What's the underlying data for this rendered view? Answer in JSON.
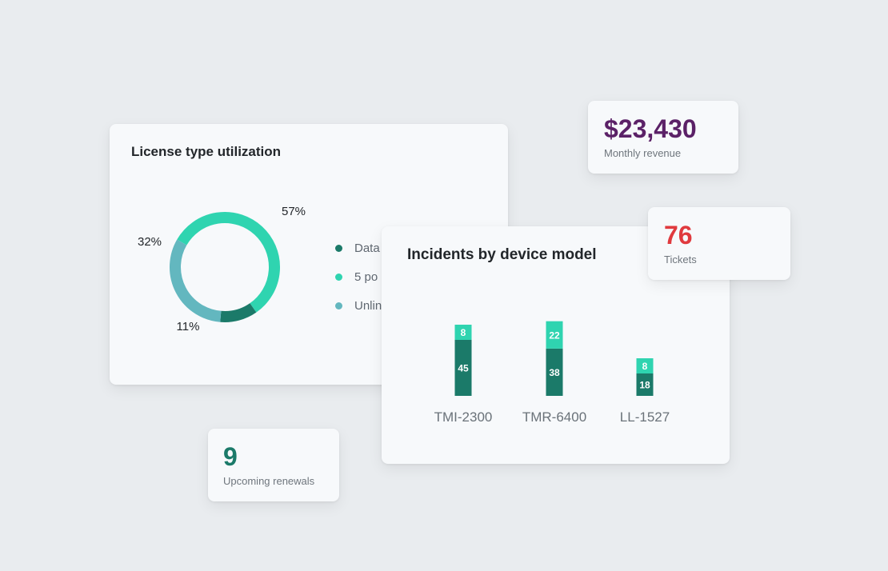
{
  "license_card": {
    "title": "License type utilization",
    "legend": [
      {
        "label": "Data",
        "color": "#1b7a69"
      },
      {
        "label": "5 po",
        "color": "#2fd4b0"
      },
      {
        "label": "Unlin",
        "color": "#63b7bf"
      }
    ]
  },
  "incidents_card": {
    "title": "Incidents by device model"
  },
  "revenue_kpi": {
    "value": "$23,430",
    "label": "Monthly revenue",
    "color": "#5b2167"
  },
  "tickets_kpi": {
    "value": "76",
    "label": "Tickets",
    "color": "#e03a3e"
  },
  "renewals_kpi": {
    "value": "9",
    "label": "Upcoming renewals",
    "color": "#1b7a69"
  },
  "chart_data": [
    {
      "type": "pie",
      "variant": "donut",
      "title": "License type utilization",
      "slices": [
        {
          "label": "5 po",
          "value": 57,
          "display": "57%",
          "color": "#2fd4b0"
        },
        {
          "label": "Data",
          "value": 11,
          "display": "11%",
          "color": "#1b7a69"
        },
        {
          "label": "Unlin",
          "value": 32,
          "display": "32%",
          "color": "#63b7bf"
        }
      ],
      "legend_position": "right"
    },
    {
      "type": "bar",
      "stacked": true,
      "title": "Incidents by device model",
      "categories": [
        "TMI-2300",
        "TMR-6400",
        "LL-1527"
      ],
      "series": [
        {
          "values": [
            45,
            38,
            18
          ],
          "color": "#1b7a69"
        },
        {
          "values": [
            8,
            22,
            8
          ],
          "color": "#2fd4b0"
        }
      ],
      "grid": false
    }
  ]
}
